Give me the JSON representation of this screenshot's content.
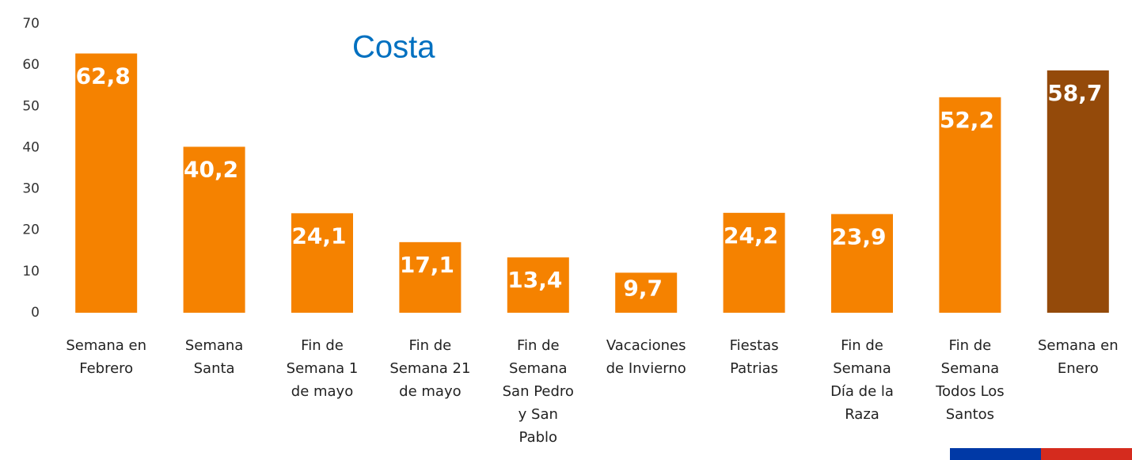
{
  "chart_data": {
    "type": "bar",
    "title": "Costa",
    "categories": [
      [
        "Semana en",
        "Febrero"
      ],
      [
        "Semana",
        "Santa"
      ],
      [
        "Fin de",
        "Semana 1",
        "de mayo"
      ],
      [
        "Fin de",
        "Semana 21",
        "de mayo"
      ],
      [
        "Fin de",
        "Semana",
        "San Pedro",
        "y San",
        "Pablo"
      ],
      [
        "Vacaciones",
        "de Invierno"
      ],
      [
        "Fiestas",
        "Patrias"
      ],
      [
        "Fin de",
        "Semana",
        "Día de la",
        "Raza"
      ],
      [
        "Fin de",
        "Semana",
        "Todos Los",
        "Santos"
      ],
      [
        "Semana en",
        "Enero"
      ]
    ],
    "values": [
      62.8,
      40.2,
      24.1,
      17.1,
      13.4,
      9.7,
      24.2,
      23.9,
      52.2,
      58.7
    ],
    "value_labels": [
      "62,8",
      "40,2",
      "24,1",
      "17,1",
      "13,4",
      "9,7",
      "24,2",
      "23,9",
      "52,2",
      "58,7"
    ],
    "colors": [
      "#F58200",
      "#F58200",
      "#F58200",
      "#F58200",
      "#F58200",
      "#F58200",
      "#F58200",
      "#F58200",
      "#F58200",
      "#944A0A"
    ],
    "ylim": [
      0,
      70
    ],
    "yticks": [
      0,
      10,
      20,
      30,
      40,
      50,
      60,
      70
    ],
    "grid": false
  }
}
